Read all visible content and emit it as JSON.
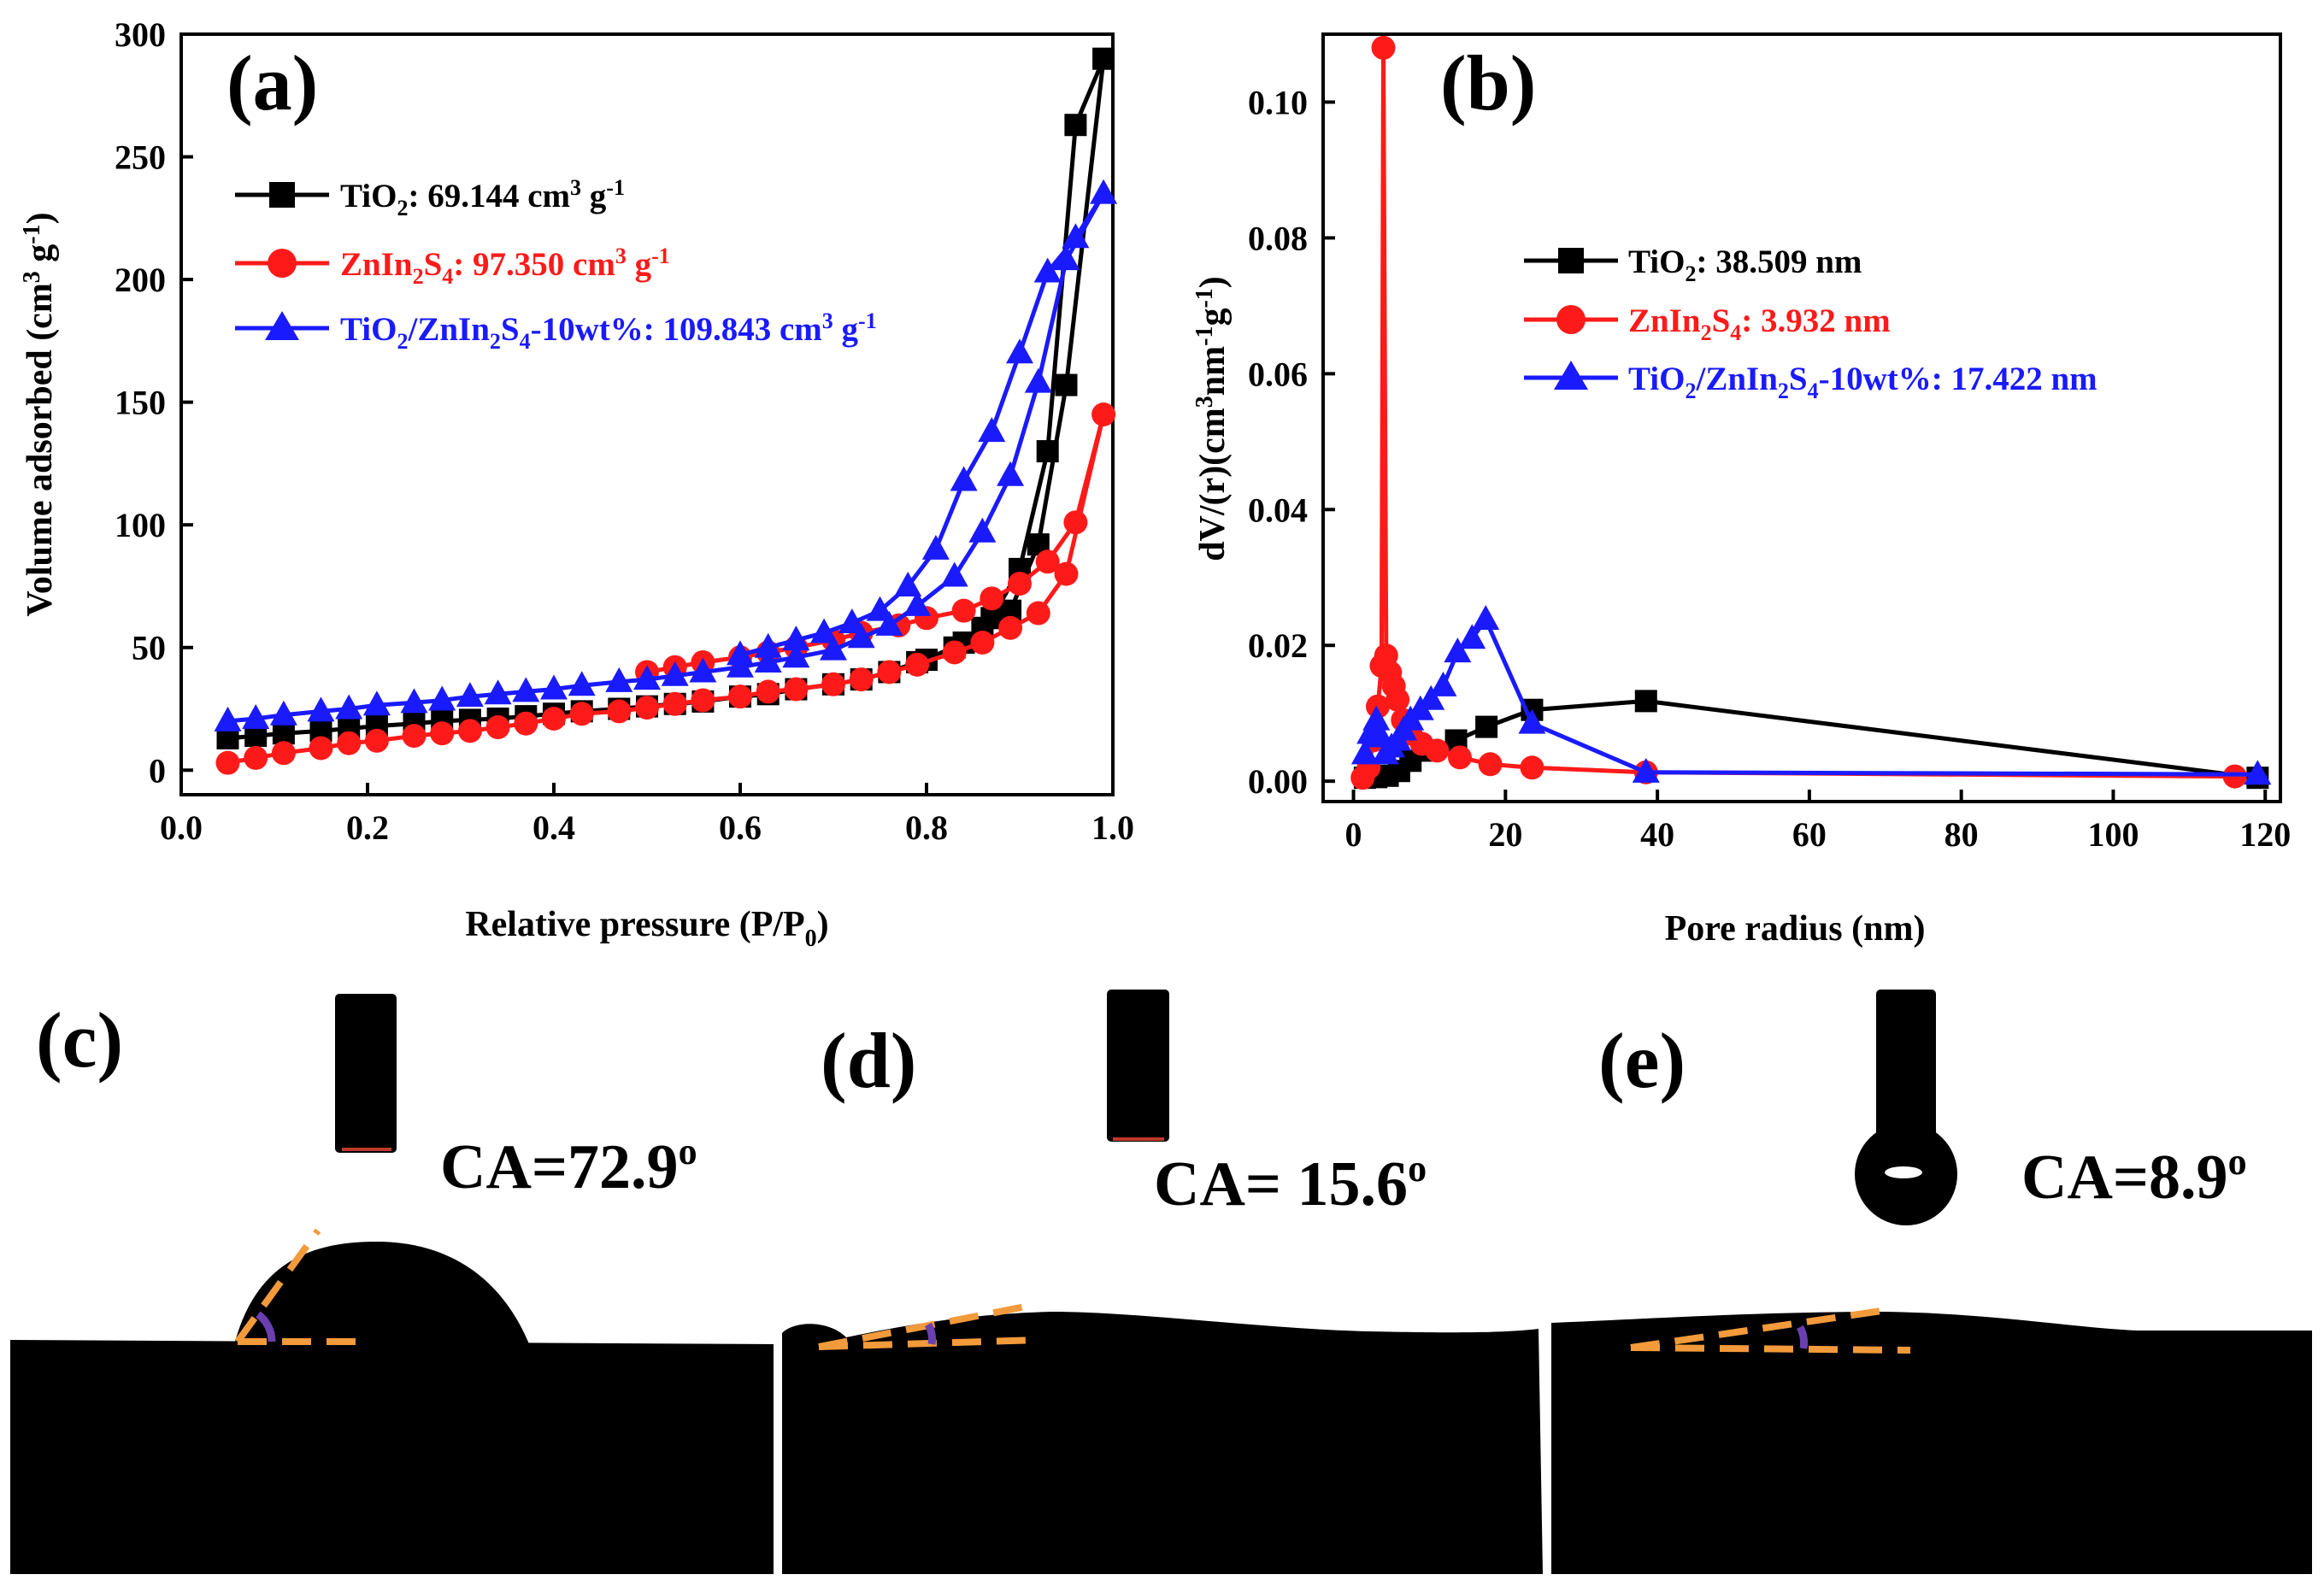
{
  "chart_data": [
    {
      "panel": "(a)",
      "type": "line",
      "xlabel": "Relative pressure (P/P",
      "xlabel_sub": "0",
      "xlabel_tail": ")",
      "ylabel": "Volume adsorbed (cm",
      "ylabel_sup": "3",
      "ylabel_mid": " g",
      "ylabel_sup2": "-1",
      "ylabel_tail": ")",
      "xlim": [
        0.0,
        1.0
      ],
      "ylim": [
        0,
        300
      ],
      "xticks": [
        "0.0",
        "0.2",
        "0.4",
        "0.6",
        "0.8",
        "1.0"
      ],
      "yticks": [
        "0",
        "50",
        "100",
        "150",
        "200",
        "250",
        "300"
      ],
      "legend_position": "upper-left",
      "series": [
        {
          "name": "TiO2",
          "label_parts": [
            "TiO",
            "2",
            ": 69.144 cm",
            "3",
            " g",
            "-1"
          ],
          "color": "#000000",
          "marker": "square",
          "adsorption": [
            [
              0.05,
              13
            ],
            [
              0.08,
              14
            ],
            [
              0.11,
              15
            ],
            [
              0.15,
              16
            ],
            [
              0.18,
              17
            ],
            [
              0.21,
              18
            ],
            [
              0.25,
              19
            ],
            [
              0.28,
              20
            ],
            [
              0.31,
              20.5
            ],
            [
              0.34,
              21
            ],
            [
              0.37,
              22
            ],
            [
              0.4,
              23
            ],
            [
              0.43,
              24
            ],
            [
              0.47,
              25
            ],
            [
              0.5,
              26
            ],
            [
              0.53,
              27
            ],
            [
              0.56,
              28
            ],
            [
              0.6,
              30
            ],
            [
              0.63,
              31
            ],
            [
              0.66,
              33
            ],
            [
              0.7,
              35
            ],
            [
              0.73,
              37
            ],
            [
              0.76,
              40
            ],
            [
              0.79,
              44
            ],
            [
              0.83,
              50
            ],
            [
              0.86,
              58
            ],
            [
              0.89,
              65
            ],
            [
              0.92,
              92
            ],
            [
              0.95,
              157
            ],
            [
              0.99,
              290
            ]
          ],
          "desorption": [
            [
              0.99,
              290
            ],
            [
              0.96,
              263
            ],
            [
              0.93,
              130
            ],
            [
              0.9,
              82
            ],
            [
              0.87,
              62
            ],
            [
              0.84,
              52
            ],
            [
              0.8,
              45
            ]
          ]
        },
        {
          "name": "ZnIn2S4",
          "label_parts": [
            "ZnIn",
            "2",
            "S",
            "4",
            ": 97.350 cm",
            "3",
            " g",
            "-1"
          ],
          "color": "#ff1a1a",
          "marker": "circle",
          "adsorption": [
            [
              0.05,
              3
            ],
            [
              0.08,
              5
            ],
            [
              0.11,
              7
            ],
            [
              0.15,
              9
            ],
            [
              0.18,
              11
            ],
            [
              0.21,
              12
            ],
            [
              0.25,
              14
            ],
            [
              0.28,
              15
            ],
            [
              0.31,
              16
            ],
            [
              0.34,
              17.5
            ],
            [
              0.37,
              19
            ],
            [
              0.4,
              21
            ],
            [
              0.43,
              23
            ],
            [
              0.47,
              24
            ],
            [
              0.5,
              25.5
            ],
            [
              0.53,
              27
            ],
            [
              0.56,
              28.5
            ],
            [
              0.6,
              30
            ],
            [
              0.63,
              32
            ],
            [
              0.66,
              33
            ],
            [
              0.7,
              35
            ],
            [
              0.73,
              37
            ],
            [
              0.76,
              40
            ],
            [
              0.79,
              43
            ],
            [
              0.83,
              48
            ],
            [
              0.86,
              52
            ],
            [
              0.89,
              58
            ],
            [
              0.92,
              64
            ],
            [
              0.95,
              80
            ],
            [
              0.99,
              145
            ]
          ],
          "desorption": [
            [
              0.99,
              145
            ],
            [
              0.96,
              101
            ],
            [
              0.93,
              85
            ],
            [
              0.9,
              76
            ],
            [
              0.87,
              70
            ],
            [
              0.84,
              65
            ],
            [
              0.8,
              62
            ],
            [
              0.77,
              59
            ],
            [
              0.73,
              56
            ],
            [
              0.7,
              53
            ],
            [
              0.66,
              50
            ],
            [
              0.63,
              48
            ],
            [
              0.6,
              46
            ],
            [
              0.56,
              44
            ],
            [
              0.53,
              42
            ],
            [
              0.5,
              40
            ]
          ]
        },
        {
          "name": "TiO2/ZnIn2S4-10wt%",
          "label_parts": [
            "TiO",
            "2",
            "/ZnIn",
            "2",
            "S",
            "4",
            "-10wt%: 109.843 cm",
            "3",
            " g",
            "-1"
          ],
          "color": "#1a1aff",
          "marker": "triangle",
          "adsorption": [
            [
              0.05,
              20
            ],
            [
              0.08,
              21
            ],
            [
              0.11,
              22.5
            ],
            [
              0.15,
              24
            ],
            [
              0.18,
              25
            ],
            [
              0.21,
              26.5
            ],
            [
              0.25,
              27.5
            ],
            [
              0.28,
              28.5
            ],
            [
              0.31,
              30
            ],
            [
              0.34,
              31
            ],
            [
              0.37,
              32
            ],
            [
              0.4,
              33
            ],
            [
              0.43,
              34.5
            ],
            [
              0.47,
              36
            ],
            [
              0.5,
              37
            ],
            [
              0.53,
              38.5
            ],
            [
              0.56,
              40
            ],
            [
              0.6,
              42
            ],
            [
              0.63,
              44
            ],
            [
              0.66,
              46
            ],
            [
              0.7,
              49
            ],
            [
              0.73,
              54
            ],
            [
              0.76,
              59
            ],
            [
              0.79,
              67
            ],
            [
              0.83,
              79
            ],
            [
              0.86,
              97
            ],
            [
              0.89,
              120
            ],
            [
              0.92,
              158
            ],
            [
              0.95,
              208
            ],
            [
              0.99,
              235
            ]
          ],
          "desorption": [
            [
              0.99,
              235
            ],
            [
              0.96,
              217
            ],
            [
              0.93,
              203
            ],
            [
              0.9,
              170
            ],
            [
              0.87,
              138
            ],
            [
              0.84,
              118
            ],
            [
              0.81,
              90
            ],
            [
              0.78,
              75
            ],
            [
              0.75,
              65
            ],
            [
              0.72,
              60
            ],
            [
              0.69,
              56
            ],
            [
              0.66,
              53
            ],
            [
              0.63,
              50
            ],
            [
              0.6,
              47
            ]
          ]
        }
      ]
    },
    {
      "panel": "(b)",
      "type": "line",
      "xlabel": "Pore radius (nm)",
      "ylabel": "dV/(r)(cm",
      "ylabel_sup": "3",
      "ylabel_mid": "nm",
      "ylabel_sup2": "-1",
      "ylabel_mid2": "g",
      "ylabel_sup3": "-1",
      "ylabel_tail": ")",
      "xlim": [
        -4,
        122
      ],
      "ylim": [
        -0.003,
        0.11
      ],
      "xticks": [
        "0",
        "20",
        "40",
        "60",
        "80",
        "100",
        "120"
      ],
      "yticks": [
        "0.00",
        "0.02",
        "0.04",
        "0.06",
        "0.08",
        "0.10"
      ],
      "legend_position": "middle-right",
      "series": [
        {
          "name": "TiO2",
          "label_parts": [
            "TiO",
            "2",
            ": 38.509 nm"
          ],
          "color": "#000000",
          "marker": "square",
          "points": [
            [
              1.5,
              0.0005
            ],
            [
              3,
              0.0006
            ],
            [
              4.5,
              0.0008
            ],
            [
              6,
              0.0015
            ],
            [
              7.5,
              0.003
            ],
            [
              10,
              0.0045
            ],
            [
              13.5,
              0.006
            ],
            [
              17.5,
              0.008
            ],
            [
              23.5,
              0.0105
            ],
            [
              38.5,
              0.0118
            ],
            [
              119,
              0.0005
            ]
          ]
        },
        {
          "name": "ZnIn2S4",
          "label_parts": [
            "ZnIn",
            "2",
            "S",
            "4",
            ": 3.932 nm"
          ],
          "color": "#ff1a1a",
          "marker": "circle",
          "points": [
            [
              1.2,
              0.0005
            ],
            [
              2,
              0.002
            ],
            [
              2.6,
              0.006
            ],
            [
              3.2,
              0.011
            ],
            [
              3.7,
              0.017
            ],
            [
              3.93,
              0.108
            ],
            [
              4.3,
              0.0185
            ],
            [
              4.8,
              0.016
            ],
            [
              5.3,
              0.014
            ],
            [
              5.8,
              0.012
            ],
            [
              6.5,
              0.009
            ],
            [
              7.5,
              0.007
            ],
            [
              9,
              0.0055
            ],
            [
              11,
              0.0045
            ],
            [
              14,
              0.0035
            ],
            [
              18,
              0.0025
            ],
            [
              23.5,
              0.002
            ],
            [
              38.5,
              0.0013
            ],
            [
              116,
              0.0007
            ]
          ]
        },
        {
          "name": "TiO2/ZnIn2S4-10wt%",
          "label_parts": [
            "TiO",
            "2",
            "/ZnIn",
            "2",
            "S",
            "4",
            "-10wt%: 17.422 nm"
          ],
          "color": "#1a1aff",
          "marker": "triangle",
          "points": [
            [
              1.5,
              0.004
            ],
            [
              2.2,
              0.007
            ],
            [
              3,
              0.009
            ],
            [
              3.6,
              0.0065
            ],
            [
              4.2,
              0.004
            ],
            [
              5,
              0.005
            ],
            [
              5.8,
              0.006
            ],
            [
              6.6,
              0.0075
            ],
            [
              7.5,
              0.009
            ],
            [
              8.8,
              0.0105
            ],
            [
              10.2,
              0.012
            ],
            [
              11.8,
              0.014
            ],
            [
              13.7,
              0.019
            ],
            [
              15.6,
              0.021
            ],
            [
              17.4,
              0.0238
            ],
            [
              23.5,
              0.0085
            ],
            [
              38.5,
              0.0013
            ],
            [
              119,
              0.001
            ]
          ]
        }
      ]
    }
  ],
  "panels": {
    "a_label": "(a)",
    "b_label": "(b)",
    "c_label": "(c)",
    "d_label": "(d)",
    "e_label": "(e)"
  },
  "contact_angles": {
    "c": {
      "prefix": "CA=72.9",
      "sup": "o",
      "angle_deg": 72.9
    },
    "d": {
      "prefix": "CA= 15.6",
      "sup": "o",
      "angle_deg": 15.6
    },
    "e": {
      "prefix": "CA=8.9",
      "sup": "o",
      "angle_deg": 8.9
    }
  },
  "colors": {
    "black": "#000000",
    "red": "#ff1a1a",
    "blue": "#1a1aff",
    "tangent": "#f39a3b",
    "angle_arc": "#6a3fb0"
  }
}
